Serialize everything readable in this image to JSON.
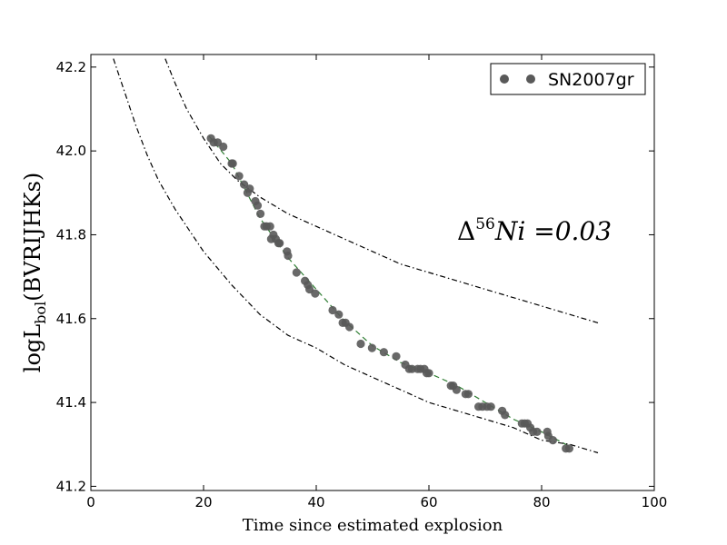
{
  "chart_data": {
    "type": "scatter",
    "xlabel": "Time since estimated explosion",
    "ylabel_main": "log",
    "ylabel_sub": "bol",
    "ylabel_tail": "(BVRIJHKs)",
    "ylabel_L": "L",
    "xlim": [
      0,
      100
    ],
    "ylim": [
      41.19,
      42.23
    ],
    "xticks": [
      0,
      20,
      40,
      60,
      80,
      100
    ],
    "yticks": [
      41.2,
      41.4,
      41.6,
      41.8,
      42.0,
      42.2
    ],
    "ytick_labels": [
      "41.2",
      "41.4",
      "41.6",
      "41.8",
      "42.0",
      "42.2"
    ],
    "grid": false,
    "legend_position": "top-right",
    "annotation": {
      "delta": "Δ",
      "sup": "56",
      "text": "Ni =0.03"
    },
    "series": [
      {
        "name": "SN2007gr",
        "color": "#595959",
        "x": [
          21.3,
          21.8,
          22.5,
          23.5,
          25.0,
          25.2,
          26.3,
          27.2,
          27.8,
          28.2,
          29.2,
          29.6,
          30.1,
          30.8,
          31.2,
          31.8,
          32.0,
          32.4,
          32.8,
          33.3,
          33.5,
          34.8,
          35.0,
          36.5,
          38.0,
          38.5,
          38.8,
          39.8,
          42.9,
          44.0,
          44.7,
          45.2,
          45.9,
          47.9,
          49.9,
          52.0,
          54.2,
          55.8,
          56.5,
          57.0,
          58.0,
          58.5,
          59.2,
          59.6,
          60.0,
          63.9,
          64.3,
          64.9,
          66.5,
          67.0,
          68.8,
          69.5,
          70.3,
          71.0,
          73.0,
          73.5,
          76.5,
          77.0,
          77.5,
          78.0,
          78.5,
          79.2,
          81.0,
          81.2,
          82.0,
          84.3,
          84.9
        ],
        "y": [
          42.03,
          42.02,
          42.02,
          42.01,
          41.97,
          41.97,
          41.94,
          41.92,
          41.9,
          41.91,
          41.88,
          41.87,
          41.85,
          41.82,
          41.82,
          41.82,
          41.79,
          41.8,
          41.79,
          41.78,
          41.78,
          41.76,
          41.75,
          41.71,
          41.69,
          41.68,
          41.67,
          41.66,
          41.62,
          41.61,
          41.59,
          41.59,
          41.58,
          41.54,
          41.53,
          41.52,
          41.51,
          41.49,
          41.48,
          41.48,
          41.48,
          41.48,
          41.48,
          41.47,
          41.47,
          41.44,
          41.44,
          41.43,
          41.42,
          41.42,
          41.39,
          41.39,
          41.39,
          41.39,
          41.38,
          41.37,
          41.35,
          41.35,
          41.35,
          41.34,
          41.33,
          41.33,
          41.33,
          41.32,
          41.31,
          41.29,
          41.29
        ]
      },
      {
        "name": "",
        "style": "dashed",
        "color": "#2e7d32",
        "x": [
          21,
          25,
          30,
          35,
          40,
          45,
          50,
          55,
          60,
          65,
          70,
          75,
          80,
          85
        ],
        "y": [
          42.035,
          41.97,
          41.84,
          41.745,
          41.67,
          41.595,
          41.535,
          41.495,
          41.47,
          41.44,
          41.4,
          41.36,
          41.33,
          41.295
        ]
      },
      {
        "name": "",
        "style": "dashdot",
        "color": "#000000",
        "x": [
          13.2,
          15,
          17,
          20,
          23,
          26,
          30,
          35,
          40,
          45,
          50,
          55,
          60,
          65,
          70,
          75,
          80,
          85,
          90
        ],
        "y": [
          42.22,
          42.16,
          42.1,
          42.03,
          41.97,
          41.93,
          41.89,
          41.85,
          41.82,
          41.79,
          41.76,
          41.73,
          41.71,
          41.69,
          41.67,
          41.65,
          41.63,
          41.61,
          41.59
        ]
      },
      {
        "name": "",
        "style": "dashdot",
        "color": "#000000",
        "x": [
          4.0,
          6,
          8,
          10,
          12,
          15,
          20,
          25,
          30,
          35,
          40,
          45,
          50,
          55,
          60,
          65,
          70,
          75,
          80,
          85,
          90
        ],
        "y": [
          42.22,
          42.14,
          42.06,
          41.99,
          41.93,
          41.86,
          41.76,
          41.68,
          41.61,
          41.56,
          41.53,
          41.49,
          41.46,
          41.43,
          41.4,
          41.38,
          41.36,
          41.34,
          41.31,
          41.3,
          41.28
        ]
      }
    ]
  }
}
